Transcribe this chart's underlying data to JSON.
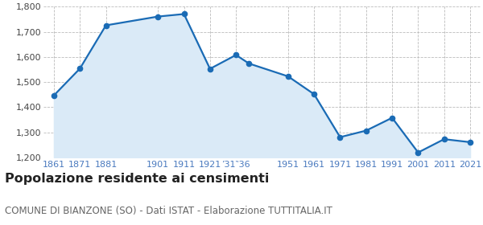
{
  "years": [
    1861,
    1871,
    1881,
    1901,
    1911,
    1921,
    1931,
    1936,
    1951,
    1961,
    1971,
    1981,
    1991,
    2001,
    2011,
    2021
  ],
  "population": [
    1447,
    1554,
    1726,
    1761,
    1771,
    1553,
    1608,
    1574,
    1523,
    1452,
    1281,
    1307,
    1358,
    1220,
    1273,
    1261
  ],
  "ylim": [
    1200,
    1800
  ],
  "yticks": [
    1200,
    1300,
    1400,
    1500,
    1600,
    1700,
    1800
  ],
  "x_positions": [
    1861,
    1871,
    1881,
    1901,
    1911,
    1921,
    1931,
    1951,
    1961,
    1971,
    1981,
    1991,
    2001,
    2011,
    2021
  ],
  "x_labels": [
    "1861",
    "1871",
    "1881",
    "1901",
    "1911",
    "1921",
    "’31‶36",
    "1951",
    "1961",
    "1971",
    "1981",
    "1991",
    "2001",
    "2011",
    "2021"
  ],
  "line_color": "#1a6bb5",
  "fill_color": "#daeaf7",
  "marker_size": 4.5,
  "line_width": 1.6,
  "grid_color": "#bbbbbb",
  "background_color": "#ffffff",
  "tick_color": "#4a7abf",
  "title": "Popolazione residente ai censimenti",
  "subtitle": "COMUNE DI BIANZONE (SO) - Dati ISTAT - Elaborazione TUTTITALIA.IT",
  "title_fontsize": 11.5,
  "subtitle_fontsize": 8.5
}
